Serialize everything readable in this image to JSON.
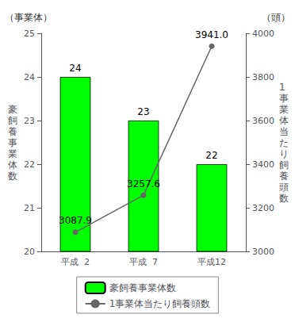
{
  "chart_data": {
    "type": "bar",
    "categories": [
      "平成  2",
      "平成  7",
      "平成12"
    ],
    "series": [
      {
        "name": "豪飼養事業体数",
        "type": "bar",
        "color": "#00ff00",
        "values": [
          24,
          23,
          22
        ]
      },
      {
        "name": "1事業体当たり飼養頭数",
        "type": "line",
        "axis": "y2",
        "color": "#666666",
        "marker": "circle",
        "values": [
          3087.9,
          3257.6,
          3941.0
        ],
        "value_labels": [
          "3087.9",
          "3257.6",
          "3941.0"
        ]
      }
    ],
    "ylabel": "豪\n飼\n養\n事\n業\n体\n数",
    "y2label": "1\n事\n業\n体\n当\nた\nり\n飼\n養\n頭\n数",
    "annotations": [
      "（事業体）",
      "（頭）"
    ],
    "ylim": [
      20,
      25
    ],
    "yticks": [
      20,
      21,
      22,
      23,
      24,
      25
    ],
    "y2lim": [
      3000,
      4000
    ],
    "y2ticks": [
      3000,
      3200,
      3400,
      3600,
      3800,
      4000
    ],
    "grid": false,
    "legend": "bottom",
    "data_labels": true
  }
}
